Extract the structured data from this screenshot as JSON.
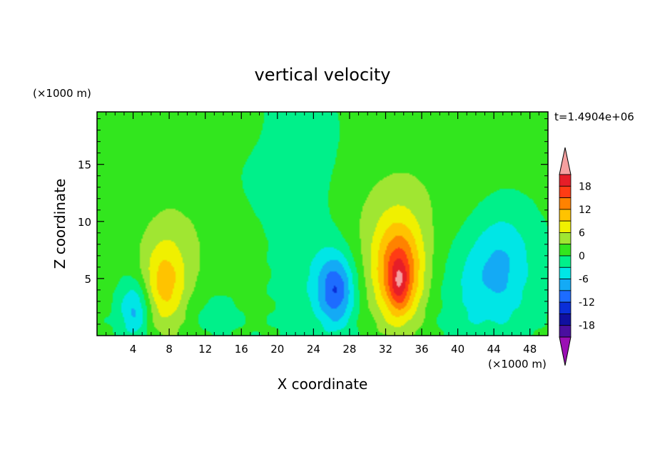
{
  "chart_data": {
    "type": "heatmap",
    "title": "vertical velocity",
    "xlabel": "X coordinate",
    "ylabel": "Z coordinate",
    "x_unit": "(×1000 m)",
    "y_unit": "(×1000 m)",
    "time_label": "t=1.4904e+06",
    "xlim": [
      0,
      50
    ],
    "ylim": [
      0,
      19.6
    ],
    "x_ticks": [
      4,
      8,
      12,
      16,
      20,
      24,
      28,
      32,
      36,
      40,
      44,
      48
    ],
    "y_ticks": [
      5,
      10,
      15
    ],
    "colorbar": {
      "levels": [
        -21,
        -18,
        -15,
        -12,
        -9,
        -6,
        -3,
        0,
        3,
        6,
        9,
        12,
        15,
        18,
        21
      ],
      "tick_labels": [
        18,
        12,
        6,
        0,
        -6,
        -12,
        -18
      ],
      "colors": [
        "#9b0fb4",
        "#4a0f9f",
        "#1010a0",
        "#0a2fd8",
        "#1d6cff",
        "#14aaf5",
        "#00e6e6",
        "#00f08a",
        "#32e61e",
        "#a0e632",
        "#f0f000",
        "#ffc300",
        "#ff8200",
        "#ff3c14",
        "#e61e28",
        "#f5a0a0"
      ],
      "extend": "both"
    },
    "features": [
      {
        "name": "updraft",
        "x": 33.5,
        "z": 5.2,
        "peak": 16
      },
      {
        "name": "updraft",
        "x": 7.5,
        "z": 4.2,
        "peak": 10
      },
      {
        "name": "downdraft",
        "x": 26.5,
        "z": 3.8,
        "peak": -11
      },
      {
        "name": "downdraft",
        "x": 4.2,
        "z": 2.2,
        "peak": -9
      },
      {
        "name": "downdraft",
        "x": 44.8,
        "z": 6.5,
        "peak": -6
      }
    ]
  }
}
